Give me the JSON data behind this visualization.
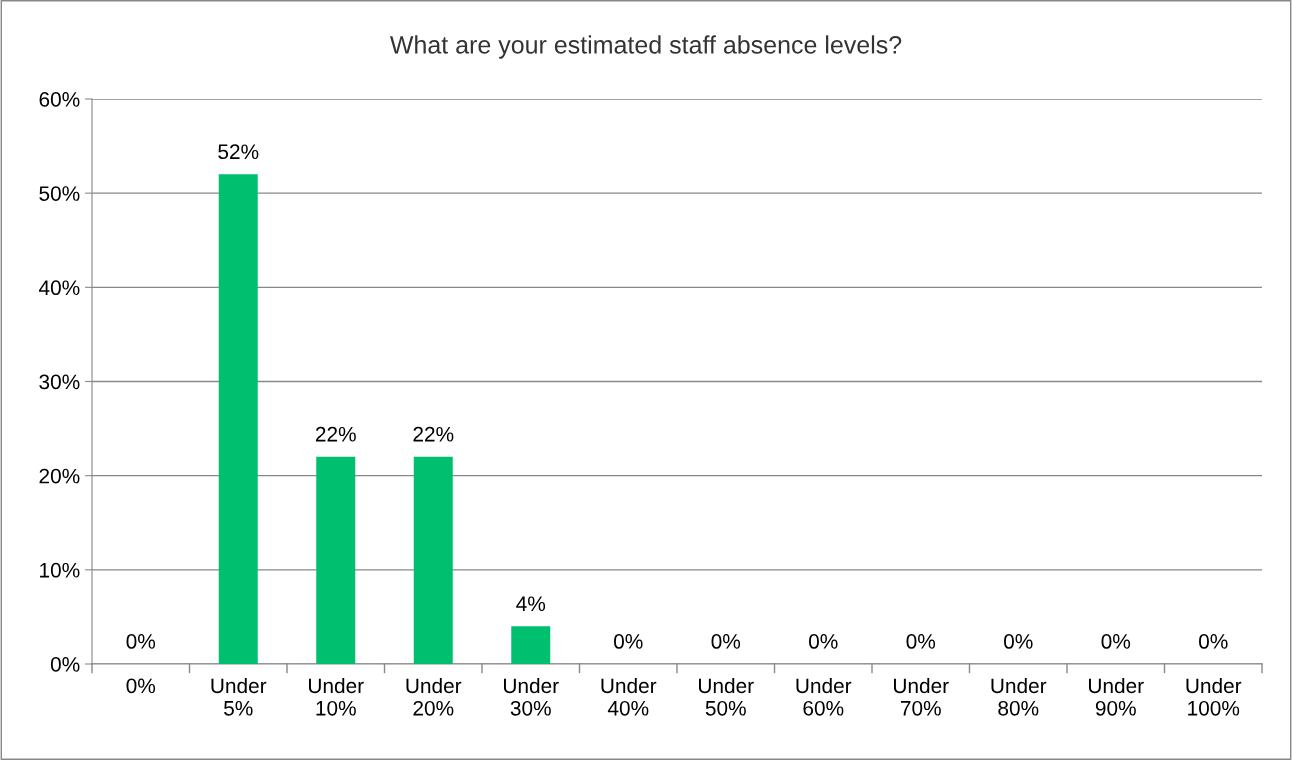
{
  "chart_data": {
    "type": "bar",
    "title": "What are your estimated staff absence levels?",
    "categories": [
      "0%",
      "Under\n5%",
      "Under\n10%",
      "Under\n20%",
      "Under\n30%",
      "Under\n40%",
      "Under\n50%",
      "Under\n60%",
      "Under\n70%",
      "Under\n80%",
      "Under\n90%",
      "Under\n100%"
    ],
    "values": [
      0,
      52,
      22,
      22,
      4,
      0,
      0,
      0,
      0,
      0,
      0,
      0
    ],
    "color": "#00c070",
    "ylim": [
      0,
      60
    ],
    "yticks": [
      {
        "value": 0,
        "label": "0%"
      },
      {
        "value": 10,
        "label": "10%"
      },
      {
        "value": 20,
        "label": "20%"
      },
      {
        "value": 30,
        "label": "30%"
      },
      {
        "value": 40,
        "label": "40%"
      },
      {
        "value": 50,
        "label": "50%"
      },
      {
        "value": 60,
        "label": "60%"
      }
    ],
    "value_labels": [
      "0%",
      "52%",
      "22%",
      "22%",
      "4%",
      "0%",
      "0%",
      "0%",
      "0%",
      "0%",
      "0%",
      "0%"
    ],
    "grid": "y",
    "legend": false
  }
}
